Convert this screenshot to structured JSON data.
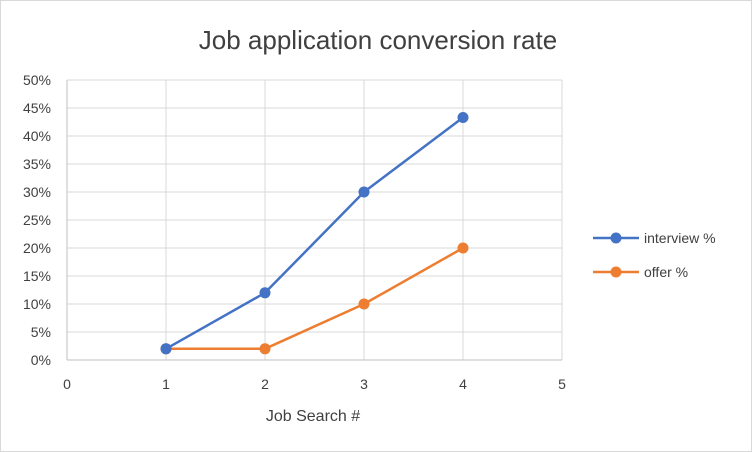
{
  "chart_data": {
    "type": "scatter",
    "title": "Job application conversion rate",
    "xlabel": "Job Search #",
    "ylabel": "",
    "xlim": [
      0,
      5
    ],
    "ylim": [
      0,
      0.5
    ],
    "x_ticks": [
      0,
      1,
      2,
      3,
      4,
      5
    ],
    "y_ticks": [
      0,
      0.05,
      0.1,
      0.15,
      0.2,
      0.25,
      0.3,
      0.35,
      0.4,
      0.45,
      0.5
    ],
    "y_tick_labels": [
      "0%",
      "5%",
      "10%",
      "15%",
      "20%",
      "25%",
      "30%",
      "35%",
      "40%",
      "45%",
      "50%"
    ],
    "grid": true,
    "legend_position": "right",
    "series": [
      {
        "name": "interview %",
        "color": "#4472c4",
        "x": [
          1,
          2,
          3,
          4
        ],
        "y": [
          0.02,
          0.12,
          0.3,
          0.433
        ]
      },
      {
        "name": "offer %",
        "color": "#ed7d31",
        "x": [
          1,
          2,
          3,
          4
        ],
        "y": [
          0.02,
          0.02,
          0.1,
          0.2
        ]
      }
    ]
  }
}
